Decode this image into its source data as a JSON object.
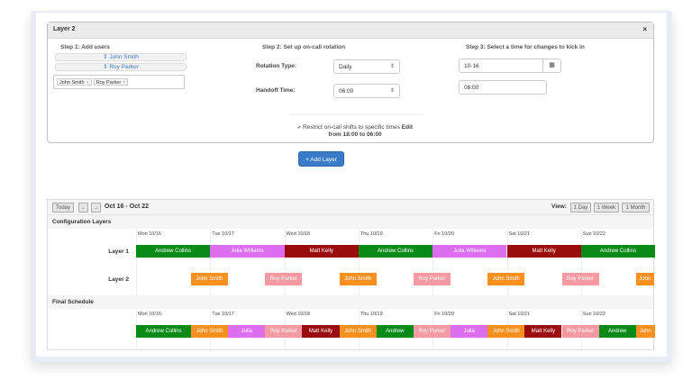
{
  "panel": {
    "title": "Layer 2",
    "close_icon": "×",
    "step1": {
      "title": "Step 1: Add users",
      "users": [
        "⇕ John Smith",
        "⇕ Roy Parker"
      ],
      "tags": [
        "John Smith",
        "Roy Parker"
      ],
      "tag_remove": "×"
    },
    "step2": {
      "title": "Step 2: Set up on-call rotation",
      "rotation_label": "Rotation Type:",
      "rotation_value": "Daily",
      "handoff_label": "Handoff Time:",
      "handoff_value": "06:00",
      "select_arrow": "⇕"
    },
    "step3": {
      "title": "Step 3: Select a time for changes to kick in",
      "date_value": "10-16",
      "calendar_icon": "▦",
      "time_value": "06:00"
    },
    "restrict": {
      "checkbox": "✔",
      "text": "Restrict on-call shifts to specific times",
      "edit": "Edit",
      "range": "from 18:00 to 06:00"
    }
  },
  "add_layer_button": "+ Add Layer",
  "schedule": {
    "today": "Today",
    "prev": "←",
    "next": "→",
    "range": "Oct 16 - Oct 22",
    "view_label": "View:",
    "views": [
      "1 Day",
      "1 Week",
      "1 Month"
    ],
    "config_title": "Configuration Layers",
    "final_title": "Final Schedule",
    "days": [
      "Mon 10/16",
      "Tue 10/17",
      "Wed 10/18",
      "Thu 10/19",
      "Fri 10/20",
      "Sat 10/21",
      "Sun 10/22"
    ],
    "layer_labels": [
      "Layer 1",
      "Layer 2"
    ],
    "colors": {
      "andrew": "#0a8a17",
      "julia": "#dd6ef0",
      "matt": "#9b0d0d",
      "john": "#f7901e",
      "roy": "#f49aa0"
    },
    "layer1": [
      {
        "name": "Andrew Collins",
        "color": "andrew"
      },
      {
        "name": "Julia Williams",
        "color": "julia"
      },
      {
        "name": "Matt Kelly",
        "color": "matt"
      },
      {
        "name": "Andrew Collins",
        "color": "andrew"
      },
      {
        "name": "Julia Williams",
        "color": "julia"
      },
      {
        "name": "Matt Kelly",
        "color": "matt"
      },
      {
        "name": "Andrew Collins",
        "color": "andrew"
      }
    ],
    "layer2": [
      {
        "name": "John Smith",
        "color": "john"
      },
      {
        "name": "Roy Parker",
        "color": "roy"
      },
      {
        "name": "John Smith",
        "color": "john"
      },
      {
        "name": "Roy Parker",
        "color": "roy"
      },
      {
        "name": "John Smith",
        "color": "john"
      },
      {
        "name": "Roy Parker",
        "color": "roy"
      },
      {
        "name": "John",
        "color": "john"
      }
    ],
    "final": [
      {
        "name": "Andrew Collins",
        "color": "andrew"
      },
      {
        "name": "John Smith",
        "color": "john"
      },
      {
        "name": "Julia",
        "color": "julia"
      },
      {
        "name": "Roy Parker",
        "color": "roy"
      },
      {
        "name": "Matt Kelly",
        "color": "matt"
      },
      {
        "name": "John Smith",
        "color": "john"
      },
      {
        "name": "Andrew",
        "color": "andrew"
      },
      {
        "name": "Roy Parker",
        "color": "roy"
      },
      {
        "name": "Julia",
        "color": "julia"
      },
      {
        "name": "John Smith",
        "color": "john"
      },
      {
        "name": "Matt Kelly",
        "color": "matt"
      },
      {
        "name": "Roy Parker",
        "color": "roy"
      },
      {
        "name": "Andrew",
        "color": "andrew"
      },
      {
        "name": "John",
        "color": "john"
      }
    ]
  }
}
